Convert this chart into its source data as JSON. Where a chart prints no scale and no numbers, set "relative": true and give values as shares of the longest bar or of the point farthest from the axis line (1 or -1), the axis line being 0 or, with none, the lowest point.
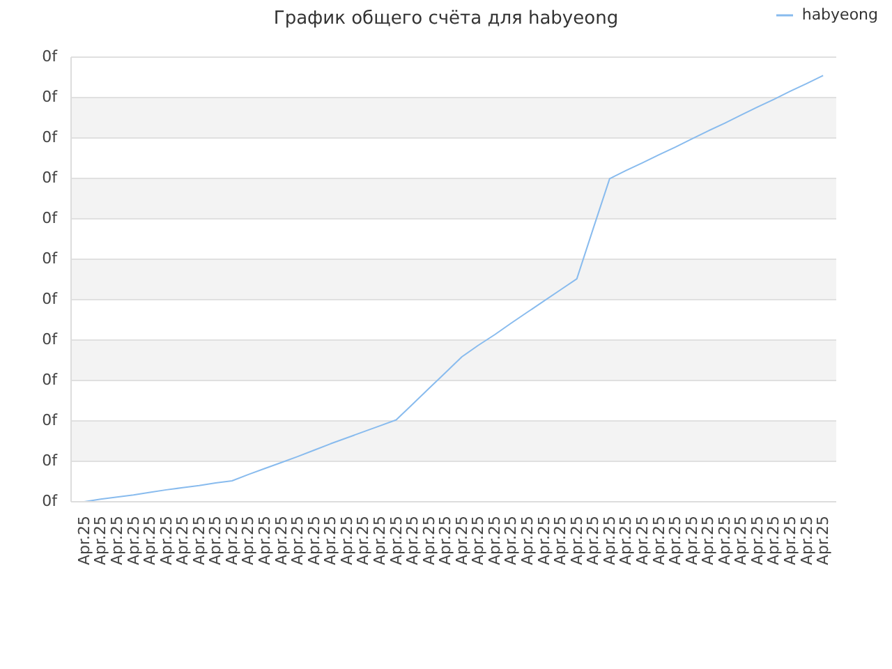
{
  "chart_data": {
    "type": "line",
    "title": "График общего счёта для habyeong",
    "categories": [
      "Apr.25",
      "Apr.25",
      "Apr.25",
      "Apr.25",
      "Apr.25",
      "Apr.25",
      "Apr.25",
      "Apr.25",
      "Apr.25",
      "Apr.25",
      "Apr.25",
      "Apr.25",
      "Apr.25",
      "Apr.25",
      "Apr.25",
      "Apr.25",
      "Apr.25",
      "Apr.25",
      "Apr.25",
      "Apr.25",
      "Apr.25",
      "Apr.25",
      "Apr.25",
      "Apr.25",
      "Apr.25",
      "Apr.25",
      "Apr.25",
      "Apr.25",
      "Apr.25",
      "Apr.25",
      "Apr.25",
      "Apr.25",
      "Apr.25",
      "Apr.25",
      "Apr.25",
      "Apr.25",
      "Apr.25",
      "Apr.25",
      "Apr.25",
      "Apr.25",
      "Apr.25",
      "Apr.25",
      "Apr.25",
      "Apr.25",
      "Apr.25",
      "Apr.25"
    ],
    "series": [
      {
        "name": "habyeong",
        "color": "#88bbee",
        "values": [
          0,
          0.006,
          0.011,
          0.016,
          0.022,
          0.028,
          0.033,
          0.038,
          0.044,
          0.049,
          0.064,
          0.078,
          0.092,
          0.106,
          0.121,
          0.136,
          0.15,
          0.164,
          0.178,
          0.192,
          0.229,
          0.266,
          0.303,
          0.34,
          0.367,
          0.392,
          0.419,
          0.445,
          0.471,
          0.497,
          0.523,
          0.641,
          0.758,
          0.777,
          0.795,
          0.814,
          0.832,
          0.851,
          0.87,
          0.888,
          0.907,
          0.926,
          0.944,
          0.963,
          0.981,
          1
        ]
      }
    ],
    "relative": true,
    "annotations": [
      "0f",
      "0f",
      "0f",
      "0f",
      "0f",
      "0f",
      "0f",
      "0f",
      "0f",
      "0f",
      "0f",
      "0f"
    ],
    "grid": "y",
    "legend": "top right",
    "marker": "none",
    "line_style": "solid"
  }
}
